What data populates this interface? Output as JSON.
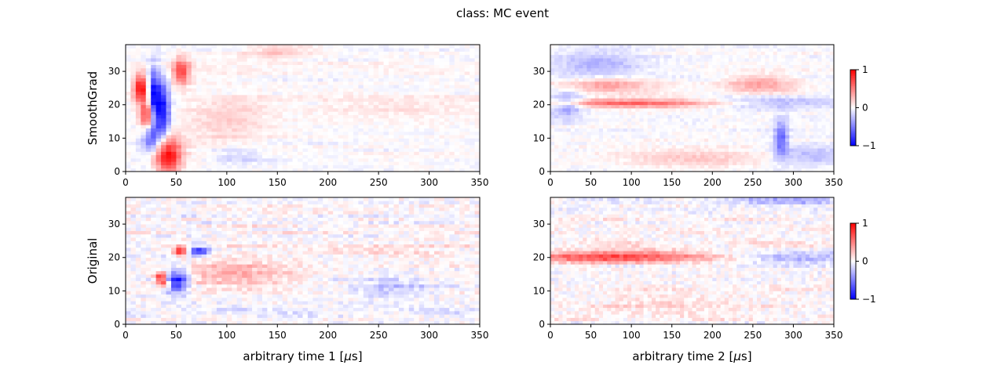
{
  "figure": {
    "title": "class: MC event"
  },
  "chart_data": [
    {
      "type": "heatmap",
      "panel": "smoothgrad-time1",
      "ylabel": "SmoothGrad",
      "xlabel": "",
      "xlim": [
        0,
        350
      ],
      "ylim": [
        0,
        38
      ],
      "xticks": [
        0,
        50,
        100,
        150,
        200,
        250,
        300,
        350
      ],
      "yticks": [
        0,
        10,
        20,
        30
      ],
      "value_range": [
        -1,
        1
      ],
      "features": [
        {
          "x": 15,
          "y": 25,
          "sx": 5,
          "sy": 3,
          "v": 1.0
        },
        {
          "x": 22,
          "y": 17,
          "sx": 5,
          "sy": 3,
          "v": 0.9
        },
        {
          "x": 28,
          "y": 22,
          "sx": 4,
          "sy": 6,
          "v": -1.0
        },
        {
          "x": 37,
          "y": 18,
          "sx": 5,
          "sy": 6,
          "v": -0.9
        },
        {
          "x": 42,
          "y": 5,
          "sx": 9,
          "sy": 4,
          "v": 1.0
        },
        {
          "x": 55,
          "y": 30,
          "sx": 6,
          "sy": 3,
          "v": 0.7
        },
        {
          "x": 25,
          "y": 10,
          "sx": 6,
          "sy": 3,
          "v": -0.6
        },
        {
          "x": 100,
          "y": 15,
          "sx": 30,
          "sy": 6,
          "v": 0.18
        },
        {
          "x": 110,
          "y": 5,
          "sx": 20,
          "sy": 2,
          "v": -0.2
        },
        {
          "x": 150,
          "y": 36,
          "sx": 25,
          "sy": 2,
          "v": 0.2
        },
        {
          "x": 260,
          "y": 20,
          "sx": 60,
          "sy": 3,
          "v": 0.1
        }
      ]
    },
    {
      "type": "heatmap",
      "panel": "smoothgrad-time2",
      "ylabel": "",
      "xlabel": "",
      "xlim": [
        0,
        350
      ],
      "ylim": [
        0,
        38
      ],
      "xticks": [
        0,
        50,
        100,
        150,
        200,
        250,
        300,
        350
      ],
      "yticks": [
        0,
        10,
        20,
        30
      ],
      "value_range": [
        -1,
        1
      ],
      "features": [
        {
          "x": 100,
          "y": 20.5,
          "sx": 90,
          "sy": 0.9,
          "v": 0.6
        },
        {
          "x": 20,
          "y": 20,
          "sx": 15,
          "sy": 3,
          "v": -0.4
        },
        {
          "x": 60,
          "y": 32,
          "sx": 40,
          "sy": 3,
          "v": -0.3
        },
        {
          "x": 70,
          "y": 26,
          "sx": 40,
          "sy": 1.5,
          "v": 0.4
        },
        {
          "x": 280,
          "y": 21,
          "sx": 60,
          "sy": 1.5,
          "v": -0.3
        },
        {
          "x": 260,
          "y": 26,
          "sx": 30,
          "sy": 2,
          "v": 0.35
        },
        {
          "x": 285,
          "y": 10,
          "sx": 6,
          "sy": 4,
          "v": -0.6
        },
        {
          "x": 320,
          "y": 5,
          "sx": 30,
          "sy": 2,
          "v": -0.3
        },
        {
          "x": 180,
          "y": 4,
          "sx": 60,
          "sy": 2,
          "v": 0.2
        }
      ]
    },
    {
      "type": "heatmap",
      "panel": "original-time1",
      "ylabel": "Original",
      "xlabel": "arbitrary time 1 [$\\mu$s]",
      "xlim": [
        0,
        350
      ],
      "ylim": [
        0,
        38
      ],
      "xticks": [
        0,
        50,
        100,
        150,
        200,
        250,
        300,
        350
      ],
      "yticks": [
        0,
        10,
        20,
        30
      ],
      "value_range": [
        -1,
        1
      ],
      "features": [
        {
          "x": 55,
          "y": 22,
          "sx": 5,
          "sy": 1,
          "v": 0.9
        },
        {
          "x": 72,
          "y": 22,
          "sx": 8,
          "sy": 1,
          "v": -0.8
        },
        {
          "x": 35,
          "y": 14,
          "sx": 4,
          "sy": 1.2,
          "v": 0.9
        },
        {
          "x": 50,
          "y": 13,
          "sx": 8,
          "sy": 2.5,
          "v": -0.9
        },
        {
          "x": 40,
          "y": 12,
          "sx": 3,
          "sy": 0.8,
          "v": 0.8
        },
        {
          "x": 110,
          "y": 15,
          "sx": 40,
          "sy": 3,
          "v": 0.3
        },
        {
          "x": 250,
          "y": 22,
          "sx": 80,
          "sy": 1.5,
          "v": 0.15
        },
        {
          "x": 260,
          "y": 11,
          "sx": 30,
          "sy": 2,
          "v": -0.2
        }
      ]
    },
    {
      "type": "heatmap",
      "panel": "original-time2",
      "ylabel": "",
      "xlabel": "arbitrary time 2 [$\\mu$s]",
      "xlim": [
        0,
        350
      ],
      "ylim": [
        0,
        38
      ],
      "xticks": [
        0,
        50,
        100,
        150,
        200,
        250,
        300,
        350
      ],
      "yticks": [
        0,
        10,
        20,
        30
      ],
      "value_range": [
        -1,
        1
      ],
      "features": [
        {
          "x": 90,
          "y": 20.3,
          "sx": 90,
          "sy": 1.3,
          "v": 0.7
        },
        {
          "x": 290,
          "y": 20,
          "sx": 70,
          "sy": 1.3,
          "v": -0.35
        },
        {
          "x": 300,
          "y": 37,
          "sx": 50,
          "sy": 1,
          "v": -0.3
        },
        {
          "x": 150,
          "y": 6,
          "sx": 80,
          "sy": 2,
          "v": 0.15
        }
      ]
    },
    {
      "type": "colorbar",
      "panel": "colorbar-top",
      "ticks": [
        1,
        0,
        -1
      ],
      "tick_labels": [
        "1",
        "0",
        "−1"
      ],
      "range": [
        -1,
        1
      ]
    },
    {
      "type": "colorbar",
      "panel": "colorbar-bottom",
      "ticks": [
        1,
        0,
        -1
      ],
      "tick_labels": [
        "1",
        "0",
        "−1"
      ],
      "range": [
        -1,
        1
      ]
    }
  ]
}
